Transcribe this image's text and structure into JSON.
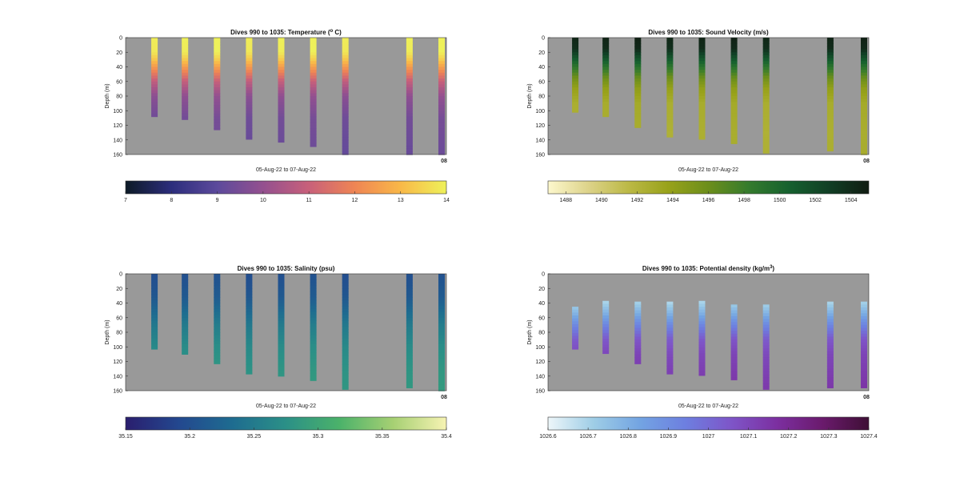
{
  "figure": {
    "background": "#ffffff",
    "plot_background": "#999999"
  },
  "chart_data": [
    {
      "type": "heatmap",
      "title": "Dives 990 to 1035: Temperature (",
      "title_super": "o",
      "title_suffix": " C)",
      "xlabel": "05-Aug-22 to 07-Aug-22",
      "ylabel": "Depth (m)",
      "x_tick_labels": [
        "08"
      ],
      "ylim": [
        0,
        160
      ],
      "y_ticks": [
        0,
        20,
        40,
        60,
        80,
        100,
        120,
        140,
        160
      ],
      "y_reversed": true,
      "grid": false,
      "colorbar": {
        "ticks": [
          "7",
          "8",
          "9",
          "10",
          "11",
          "12",
          "13",
          "14"
        ],
        "range": [
          7,
          14
        ],
        "colors": [
          "#0d1a26",
          "#2c2d7c",
          "#5c4a9c",
          "#94508f",
          "#c8607a",
          "#ef8554",
          "#f9b848",
          "#eef15a"
        ]
      },
      "profiles": [
        {
          "x": 0.09,
          "max_depth": 108
        },
        {
          "x": 0.185,
          "max_depth": 112
        },
        {
          "x": 0.285,
          "max_depth": 126
        },
        {
          "x": 0.385,
          "max_depth": 139
        },
        {
          "x": 0.485,
          "max_depth": 143
        },
        {
          "x": 0.585,
          "max_depth": 149
        },
        {
          "x": 0.685,
          "max_depth": 161
        },
        {
          "x": 0.885,
          "max_depth": 160
        },
        {
          "x": 0.985,
          "max_depth": 160
        }
      ],
      "depth_profile": [
        [
          0,
          14
        ],
        [
          20,
          13.9
        ],
        [
          30,
          13.3
        ],
        [
          45,
          12.1
        ],
        [
          60,
          10.9
        ],
        [
          80,
          9.9
        ],
        [
          110,
          9.4
        ],
        [
          160,
          9.2
        ]
      ]
    },
    {
      "type": "heatmap",
      "title": "Dives 990 to 1035: Sound Velocity (m/s)",
      "xlabel": "05-Aug-22 to 07-Aug-22",
      "ylabel": "Depth (m)",
      "x_tick_labels": [
        "08"
      ],
      "ylim": [
        0,
        160
      ],
      "y_ticks": [
        0,
        20,
        40,
        60,
        80,
        100,
        120,
        140,
        160
      ],
      "y_reversed": true,
      "grid": false,
      "colorbar": {
        "ticks": [
          "1488",
          "1490",
          "1492",
          "1494",
          "1496",
          "1498",
          "1500",
          "1502",
          "1504"
        ],
        "range": [
          1487,
          1505
        ],
        "colors": [
          "#fdf8cd",
          "#ddd38a",
          "#bcb946",
          "#98a21a",
          "#6c8e1b",
          "#357b2d",
          "#16612f",
          "#113f25",
          "#111c12"
        ]
      },
      "profiles": [
        {
          "x": 0.085,
          "max_depth": 102
        },
        {
          "x": 0.18,
          "max_depth": 108
        },
        {
          "x": 0.28,
          "max_depth": 123
        },
        {
          "x": 0.38,
          "max_depth": 136
        },
        {
          "x": 0.48,
          "max_depth": 139
        },
        {
          "x": 0.58,
          "max_depth": 145
        },
        {
          "x": 0.68,
          "max_depth": 158
        },
        {
          "x": 0.88,
          "max_depth": 155
        },
        {
          "x": 0.985,
          "max_depth": 160
        }
      ],
      "depth_profile": [
        [
          0,
          1504.5
        ],
        [
          15,
          1504
        ],
        [
          25,
          1502
        ],
        [
          40,
          1499
        ],
        [
          55,
          1496
        ],
        [
          70,
          1494
        ],
        [
          90,
          1492.8
        ],
        [
          130,
          1492.5
        ],
        [
          160,
          1492.6
        ]
      ]
    },
    {
      "type": "heatmap",
      "title": "Dives 990 to 1035: Salinity (psu)",
      "xlabel": "05-Aug-22 to 07-Aug-22",
      "ylabel": "Depth (m)",
      "x_tick_labels": [
        "08"
      ],
      "ylim": [
        0,
        160
      ],
      "y_ticks": [
        0,
        20,
        40,
        60,
        80,
        100,
        120,
        140,
        160
      ],
      "y_reversed": true,
      "grid": false,
      "colorbar": {
        "ticks": [
          "35.15",
          "35.2",
          "35.25",
          "35.3",
          "35.35",
          "35.4"
        ],
        "range": [
          35.15,
          35.4
        ],
        "colors": [
          "#2a1e6e",
          "#23488f",
          "#1e6c90",
          "#2b9087",
          "#4bb26a",
          "#a6d073",
          "#f7f3b3"
        ]
      },
      "profiles": [
        {
          "x": 0.09,
          "max_depth": 103
        },
        {
          "x": 0.185,
          "max_depth": 110
        },
        {
          "x": 0.285,
          "max_depth": 123
        },
        {
          "x": 0.385,
          "max_depth": 137
        },
        {
          "x": 0.485,
          "max_depth": 140
        },
        {
          "x": 0.585,
          "max_depth": 146
        },
        {
          "x": 0.685,
          "max_depth": 158
        },
        {
          "x": 0.885,
          "max_depth": 156
        },
        {
          "x": 0.985,
          "max_depth": 160
        }
      ],
      "depth_profile": [
        [
          0,
          35.2
        ],
        [
          30,
          35.21
        ],
        [
          50,
          35.23
        ],
        [
          70,
          35.25
        ],
        [
          100,
          35.27
        ],
        [
          130,
          35.28
        ],
        [
          160,
          35.285
        ]
      ]
    },
    {
      "type": "heatmap",
      "title": "Dives 990 to 1035: Potential density (kg/m",
      "title_super": "3",
      "title_suffix": ")",
      "xlabel": "05-Aug-22 to 07-Aug-22",
      "ylabel": "Depth (m)",
      "x_tick_labels": [
        "08"
      ],
      "ylim": [
        0,
        160
      ],
      "y_ticks": [
        0,
        20,
        40,
        60,
        80,
        100,
        120,
        140,
        160
      ],
      "y_reversed": true,
      "grid": false,
      "colorbar": {
        "ticks": [
          "1026.6",
          "1026.7",
          "1026.8",
          "1026.9",
          "1027",
          "1027.1",
          "1027.2",
          "1027.3",
          "1027.4"
        ],
        "range": [
          1026.6,
          1027.4
        ],
        "colors": [
          "#edf6f9",
          "#9ecde6",
          "#73a4e2",
          "#6d7fe0",
          "#7e55c8",
          "#7c2fa0",
          "#6a1a6c",
          "#3e0f35"
        ]
      },
      "profiles": [
        {
          "x": 0.085,
          "max_depth": 103,
          "min_depth": 45
        },
        {
          "x": 0.18,
          "max_depth": 109,
          "min_depth": 37
        },
        {
          "x": 0.28,
          "max_depth": 123,
          "min_depth": 38
        },
        {
          "x": 0.38,
          "max_depth": 137,
          "min_depth": 38
        },
        {
          "x": 0.48,
          "max_depth": 139,
          "min_depth": 37
        },
        {
          "x": 0.58,
          "max_depth": 145,
          "min_depth": 42
        },
        {
          "x": 0.68,
          "max_depth": 158,
          "min_depth": 42
        },
        {
          "x": 0.88,
          "max_depth": 156,
          "min_depth": 38
        },
        {
          "x": 0.985,
          "max_depth": 156,
          "min_depth": 38
        }
      ],
      "depth_profile": [
        [
          0,
          1026.65
        ],
        [
          40,
          1026.7
        ],
        [
          55,
          1026.8
        ],
        [
          70,
          1026.92
        ],
        [
          90,
          1027.05
        ],
        [
          110,
          1027.1
        ],
        [
          160,
          1027.15
        ]
      ]
    }
  ]
}
